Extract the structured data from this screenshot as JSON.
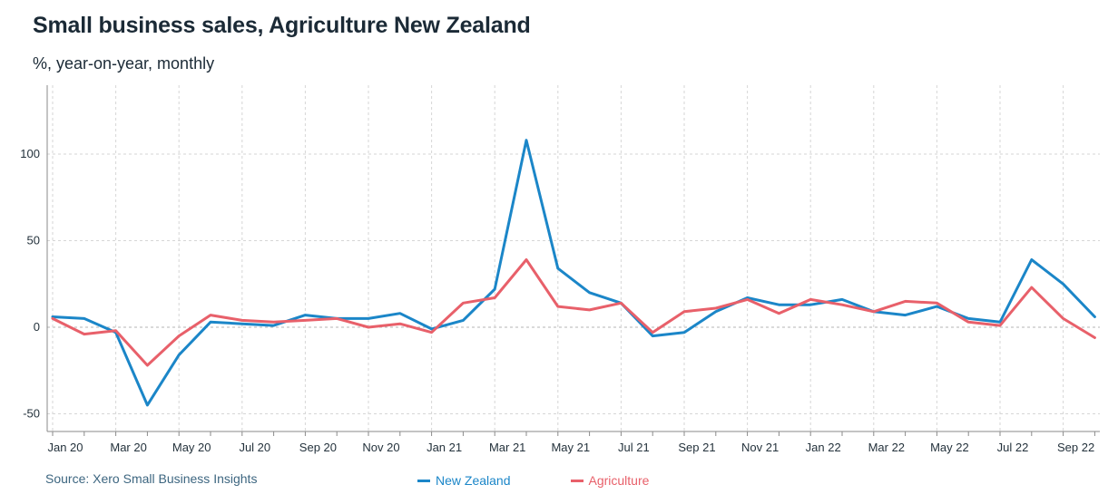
{
  "header": {
    "title": "Small business sales, Agriculture New Zealand",
    "subtitle": "%, year-on-year, monthly"
  },
  "footer": {
    "source": "Source: Xero Small Business Insights"
  },
  "colors": {
    "new_zealand": "#1b86c8",
    "agriculture": "#e8606a",
    "grid": "#d6d6d6",
    "axis": "#8a8a8a"
  },
  "chart_data": {
    "type": "line",
    "x": [
      "Jan 20",
      "Feb 20",
      "Mar 20",
      "Apr 20",
      "May 20",
      "Jun 20",
      "Jul 20",
      "Aug 20",
      "Sep 20",
      "Oct 20",
      "Nov 20",
      "Dec 20",
      "Jan 21",
      "Feb 21",
      "Mar 21",
      "Apr 21",
      "May 21",
      "Jun 21",
      "Jul 21",
      "Aug 21",
      "Sep 21",
      "Oct 21",
      "Nov 21",
      "Dec 21",
      "Jan 22",
      "Feb 22",
      "Mar 22",
      "Apr 22",
      "May 22",
      "Jun 22",
      "Jul 22",
      "Aug 22",
      "Sep 22",
      "Oct 22"
    ],
    "x_tick_labels": [
      "Jan 20",
      "Mar 20",
      "May 20",
      "Jul 20",
      "Sep 20",
      "Nov 20",
      "Jan 21",
      "Mar 21",
      "May 21",
      "Jul 21",
      "Sep 21",
      "Nov 21",
      "Jan 22",
      "Mar 22",
      "May 22",
      "Jul 22",
      "Sep 22"
    ],
    "y_ticks": [
      100,
      50,
      0,
      -50
    ],
    "ylim": [
      -57,
      140
    ],
    "grid": true,
    "legend_position": "bottom",
    "series": [
      {
        "name": "New Zealand",
        "values": [
          6,
          5,
          -3,
          -45,
          -16,
          3,
          2,
          1,
          7,
          5,
          5,
          8,
          -1,
          4,
          22,
          108,
          34,
          20,
          14,
          -5,
          -3,
          9,
          17,
          13,
          13,
          16,
          9,
          7,
          12,
          5,
          3,
          39,
          25,
          6
        ]
      },
      {
        "name": "Agriculture",
        "values": [
          5,
          -4,
          -2,
          -22,
          -5,
          7,
          4,
          3,
          4,
          5,
          0,
          2,
          -3,
          14,
          17,
          39,
          12,
          10,
          14,
          -3,
          9,
          11,
          16,
          8,
          16,
          13,
          9,
          15,
          14,
          3,
          1,
          23,
          5,
          -6
        ]
      }
    ]
  }
}
